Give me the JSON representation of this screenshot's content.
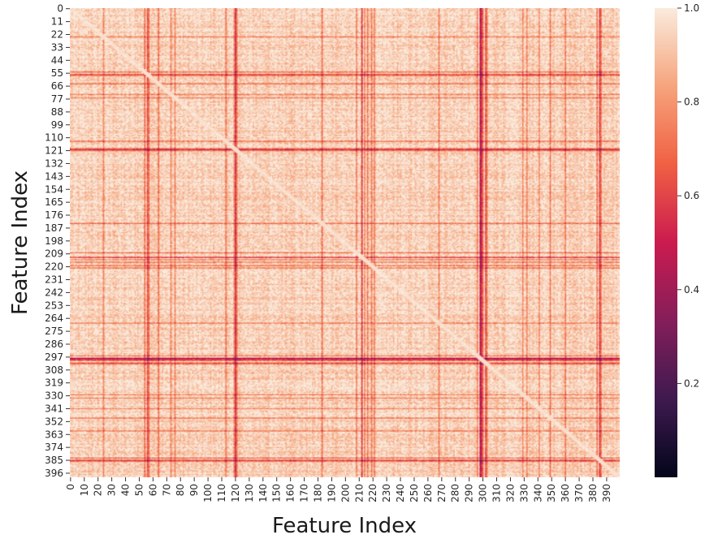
{
  "chart_data": {
    "type": "heatmap",
    "title": "",
    "xlabel": "Feature Index",
    "ylabel": "Feature Index",
    "n_features": 400,
    "x_tick_labels": [
      "0",
      "10",
      "20",
      "30",
      "40",
      "50",
      "60",
      "70",
      "80",
      "90",
      "100",
      "110",
      "120",
      "130",
      "140",
      "150",
      "160",
      "170",
      "180",
      "190",
      "200",
      "210",
      "220",
      "230",
      "240",
      "250",
      "260",
      "270",
      "280",
      "290",
      "300",
      "310",
      "320",
      "330",
      "340",
      "350",
      "360",
      "370",
      "380",
      "390"
    ],
    "y_tick_labels": [
      "0",
      "11",
      "22",
      "33",
      "44",
      "55",
      "66",
      "77",
      "88",
      "99",
      "110",
      "121",
      "132",
      "143",
      "154",
      "165",
      "176",
      "187",
      "198",
      "209",
      "220",
      "231",
      "242",
      "253",
      "264",
      "275",
      "286",
      "297",
      "308",
      "319",
      "330",
      "341",
      "352",
      "363",
      "374",
      "385",
      "396"
    ],
    "value_range": [
      0.0,
      1.0
    ],
    "colorbar": {
      "ticks": [
        "0.2",
        "0.4",
        "0.6",
        "0.8",
        "1.0"
      ],
      "tick_values": [
        0.2,
        0.4,
        0.6,
        0.8,
        1.0
      ],
      "colormap": "rocket",
      "stops": [
        "#03051a",
        "#3e1a4f",
        "#841e5a",
        "#cb1b4f",
        "#f06043",
        "#f6a47c",
        "#faebdd"
      ]
    },
    "diagonal_value": 1.0,
    "typical_value": 0.88,
    "strong_dark_features": [
      {
        "index": 120,
        "value": 0.45
      },
      {
        "index": 298,
        "value": 0.38
      },
      {
        "index": 299,
        "value": 0.45
      },
      {
        "index": 385,
        "value": 0.5
      },
      {
        "index": 212,
        "value": 0.5
      },
      {
        "index": 56,
        "value": 0.55
      },
      {
        "index": 302,
        "value": 0.55
      }
    ],
    "moderate_dark_features": [
      24,
      54,
      57,
      64,
      73,
      76,
      113,
      119,
      121,
      183,
      208,
      214,
      216,
      219,
      221,
      268,
      296,
      300,
      303,
      329,
      332,
      341,
      349,
      360,
      383,
      386
    ],
    "legend_position": "right"
  }
}
